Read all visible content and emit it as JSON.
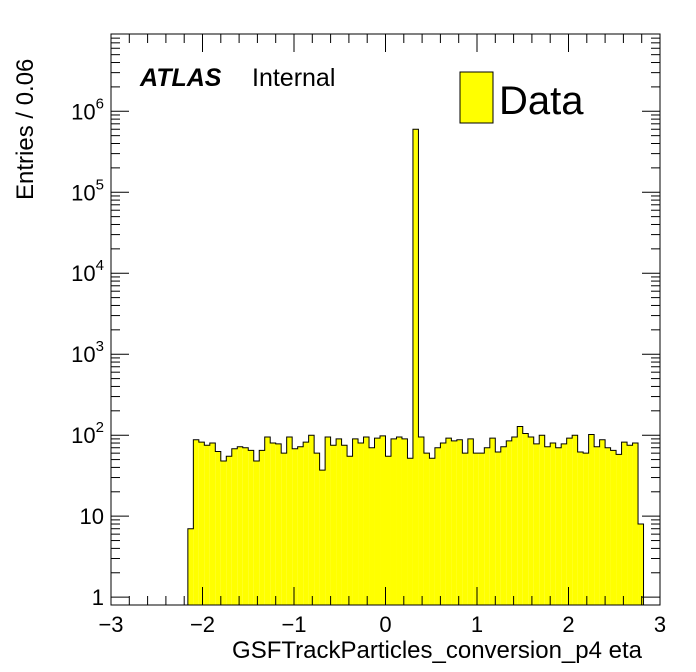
{
  "chart_data": {
    "type": "bar",
    "title": "",
    "xlabel": "GSFTrackParticles_conversion_p4 eta",
    "ylabel": "Entries / 0.06",
    "xlim": [
      -3,
      3
    ],
    "ylim": [
      0.8,
      9000000
    ],
    "y_scale": "log",
    "grid": false,
    "legend_position": "top-right",
    "bin_width": 0.06,
    "x_ticks": [
      -3,
      -2,
      -1,
      0,
      1,
      2,
      3
    ],
    "x_tick_labels": [
      "−3",
      "−2",
      "−1",
      "0",
      "1",
      "2",
      "3"
    ],
    "y_tick_labels": [
      {
        "value": 1,
        "base": "1",
        "exp": ""
      },
      {
        "value": 10,
        "base": "10",
        "exp": ""
      },
      {
        "value": 100,
        "base": "10",
        "exp": "2"
      },
      {
        "value": 1000,
        "base": "10",
        "exp": "3"
      },
      {
        "value": 10000,
        "base": "10",
        "exp": "4"
      },
      {
        "value": 100000,
        "base": "10",
        "exp": "5"
      },
      {
        "value": 1000000,
        "base": "10",
        "exp": "6"
      }
    ],
    "series": [
      {
        "name": "Data",
        "color": "#ffff00",
        "edge_color": "#000000",
        "x_start": -2.16,
        "values": [
          7,
          88,
          82,
          75,
          80,
          63,
          48,
          55,
          68,
          72,
          70,
          65,
          48,
          65,
          95,
          80,
          78,
          60,
          95,
          68,
          72,
          82,
          100,
          60,
          37,
          95,
          75,
          90,
          75,
          55,
          90,
          80,
          95,
          70,
          92,
          98,
          55,
          90,
          95,
          90,
          52,
          600000,
          95,
          60,
          52,
          70,
          80,
          92,
          85,
          88,
          60,
          90,
          60,
          60,
          70,
          92,
          62,
          72,
          85,
          95,
          128,
          105,
          95,
          78,
          100,
          72,
          80,
          70,
          78,
          92,
          100,
          62,
          60,
          102,
          72,
          88,
          70,
          65,
          58,
          82,
          75,
          80,
          8
        ]
      }
    ]
  },
  "annotations": {
    "atlas": "ATLAS",
    "status": "Internal"
  },
  "legend": {
    "label": "Data"
  }
}
